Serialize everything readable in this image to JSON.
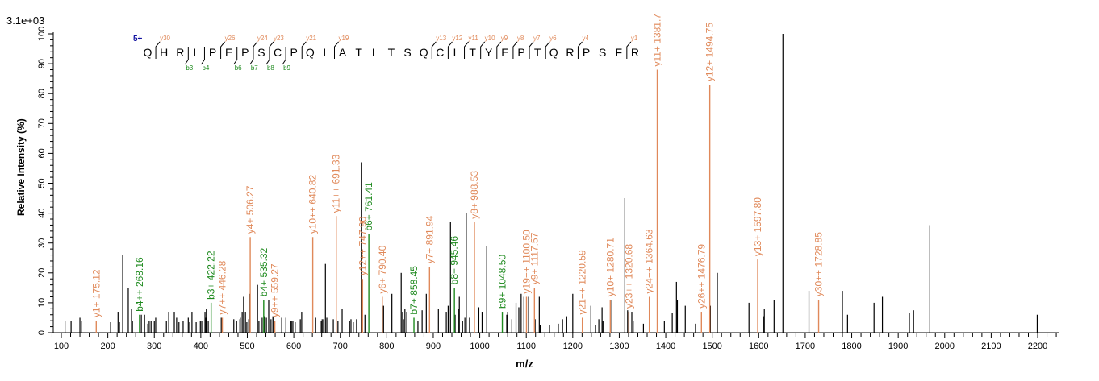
{
  "chart_data": {
    "type": "bar",
    "subtype": "mass-spectrum-stick",
    "scale_label": "3.1e+03",
    "xlabel": "m/z",
    "ylabel": "Relative   Intensity (%)",
    "xlim": [
      100,
      2250
    ],
    "ylim": [
      0,
      100
    ],
    "x_ticks": [
      100,
      200,
      300,
      400,
      500,
      600,
      700,
      800,
      900,
      1000,
      1100,
      1200,
      1300,
      1400,
      1500,
      1600,
      1700,
      1800,
      1900,
      2000,
      2100,
      2200
    ],
    "y_ticks": [
      0,
      10,
      20,
      30,
      40,
      50,
      60,
      70,
      80,
      90,
      100
    ],
    "grid": false,
    "colors": {
      "unassigned": "#000000",
      "y_ion": "#E0895A",
      "b_ion": "#1E8A1E",
      "charge": "#1010A0"
    },
    "sequence": {
      "charge": "5+",
      "residues": [
        "Q",
        "H",
        "R",
        "L",
        "P",
        "E",
        "P",
        "S",
        "C",
        "P",
        "Q",
        "L",
        "A",
        "T",
        "L",
        "T",
        "S",
        "Q",
        "C",
        "L",
        "T",
        "Y",
        "E",
        "P",
        "T",
        "Q",
        "R",
        "P",
        "S",
        "F",
        "R"
      ],
      "y_markers": [
        {
          "before": 1,
          "label": "y30"
        },
        {
          "before": 5,
          "label": "y26"
        },
        {
          "before": 7,
          "label": "y24"
        },
        {
          "before": 8,
          "label": "y23"
        },
        {
          "before": 10,
          "label": "y21"
        },
        {
          "before": 12,
          "label": "y19"
        },
        {
          "before": 18,
          "label": "y13"
        },
        {
          "before": 19,
          "label": "y12"
        },
        {
          "before": 20,
          "label": "y11"
        },
        {
          "before": 21,
          "label": "y10"
        },
        {
          "before": 22,
          "label": "y9"
        },
        {
          "before": 23,
          "label": "y8"
        },
        {
          "before": 24,
          "label": "y7"
        },
        {
          "before": 25,
          "label": "y6"
        },
        {
          "before": 27,
          "label": "y4"
        },
        {
          "before": 30,
          "label": "y1"
        }
      ],
      "b_markers": [
        {
          "before": 3,
          "label": "b3"
        },
        {
          "before": 4,
          "label": "b4"
        },
        {
          "before": 6,
          "label": "b6"
        },
        {
          "before": 7,
          "label": "b7"
        },
        {
          "before": 8,
          "label": "b8"
        },
        {
          "before": 9,
          "label": "b9"
        }
      ]
    },
    "labeled_peaks": [
      {
        "mz": 175.12,
        "intensity": 4,
        "ion": "y",
        "label": "y1+ 175.12"
      },
      {
        "mz": 268.16,
        "intensity": 6,
        "ion": "b",
        "label": "b4++ 268.16"
      },
      {
        "mz": 422.22,
        "intensity": 10,
        "ion": "b",
        "label": "b3+ 422.22"
      },
      {
        "mz": 446.28,
        "intensity": 5,
        "ion": "y",
        "label": "y7++ 446.28"
      },
      {
        "mz": 506.27,
        "intensity": 32,
        "ion": "y",
        "label": "y4+ 506.27"
      },
      {
        "mz": 535.32,
        "intensity": 11,
        "ion": "b",
        "label": "b4+ 535.32"
      },
      {
        "mz": 559.27,
        "intensity": 4,
        "ion": "y",
        "label": "y9++ 559.27"
      },
      {
        "mz": 640.82,
        "intensity": 32,
        "ion": "y",
        "label": "y10++ 640.82"
      },
      {
        "mz": 691.33,
        "intensity": 39,
        "ion": "y",
        "label": "y11++ 691.33"
      },
      {
        "mz": 747.9,
        "intensity": 18,
        "ion": "y",
        "label": "y12++ 747.90"
      },
      {
        "mz": 761.41,
        "intensity": 33,
        "ion": "b",
        "label": "b6+ 761.41"
      },
      {
        "mz": 790.4,
        "intensity": 12,
        "ion": "y",
        "label": "y6+ 790.40"
      },
      {
        "mz": 858.45,
        "intensity": 5,
        "ion": "b",
        "label": "b7+ 858.45"
      },
      {
        "mz": 891.94,
        "intensity": 22,
        "ion": "y",
        "label": "y7+ 891.94"
      },
      {
        "mz": 945.46,
        "intensity": 15,
        "ion": "b",
        "label": "b8+ 945.46"
      },
      {
        "mz": 988.53,
        "intensity": 37,
        "ion": "y",
        "label": "y8+ 988.53"
      },
      {
        "mz": 1048.5,
        "intensity": 7,
        "ion": "b",
        "label": "b9+ 1048.50"
      },
      {
        "mz": 1100.5,
        "intensity": 12,
        "ion": "y",
        "label": "y19++ 1100.50"
      },
      {
        "mz": 1117.57,
        "intensity": 15,
        "ion": "y",
        "label": "y9+ 1117.57"
      },
      {
        "mz": 1220.59,
        "intensity": 5,
        "ion": "y",
        "label": "y21++ 1220.59"
      },
      {
        "mz": 1280.71,
        "intensity": 11,
        "ion": "y",
        "label": "y10+ 1280.71"
      },
      {
        "mz": 1320.68,
        "intensity": 7,
        "ion": "y",
        "label": "y23++ 1320.68"
      },
      {
        "mz": 1364.63,
        "intensity": 12,
        "ion": "y",
        "label": "y24++ 1364.63"
      },
      {
        "mz": 1381.7,
        "intensity": 88,
        "ion": "y",
        "label": "y11+ 1381.7"
      },
      {
        "mz": 1476.79,
        "intensity": 7,
        "ion": "y",
        "label": "y26++ 1476.79"
      },
      {
        "mz": 1494.75,
        "intensity": 83,
        "ion": "y",
        "label": "y12+ 1494.75"
      },
      {
        "mz": 1597.8,
        "intensity": 24.5,
        "ion": "y",
        "label": "y13+ 1597.80"
      },
      {
        "mz": 1728.85,
        "intensity": 11,
        "ion": "y",
        "label": "y30++ 1728.85"
      }
    ],
    "unlabeled_peaks": [
      [
        108,
        4
      ],
      [
        121,
        4
      ],
      [
        140,
        5
      ],
      [
        143,
        4
      ],
      [
        206,
        3.5
      ],
      [
        222,
        7
      ],
      [
        225,
        3.5
      ],
      [
        232,
        26
      ],
      [
        244,
        15
      ],
      [
        251,
        8
      ],
      [
        253,
        4
      ],
      [
        272,
        6
      ],
      [
        279,
        6
      ],
      [
        286,
        3
      ],
      [
        289,
        4
      ],
      [
        293,
        4
      ],
      [
        300,
        4
      ],
      [
        303,
        5
      ],
      [
        326,
        4
      ],
      [
        331,
        7
      ],
      [
        343,
        7
      ],
      [
        348,
        5
      ],
      [
        353,
        3.5
      ],
      [
        362,
        4
      ],
      [
        373,
        5
      ],
      [
        376,
        3.5
      ],
      [
        381,
        7
      ],
      [
        390,
        3.5
      ],
      [
        399,
        4
      ],
      [
        402,
        4
      ],
      [
        409,
        7
      ],
      [
        411,
        5
      ],
      [
        412,
        8
      ],
      [
        416,
        4
      ],
      [
        444,
        5
      ],
      [
        471,
        4.5
      ],
      [
        477,
        4
      ],
      [
        484,
        4.5
      ],
      [
        485,
        5
      ],
      [
        489,
        7
      ],
      [
        492,
        12
      ],
      [
        496,
        7
      ],
      [
        499,
        3.5
      ],
      [
        503,
        4.5
      ],
      [
        504,
        13
      ],
      [
        522,
        16
      ],
      [
        525,
        4
      ],
      [
        532,
        5
      ],
      [
        537,
        5.5
      ],
      [
        541,
        5
      ],
      [
        546,
        11
      ],
      [
        551,
        4.5
      ],
      [
        555,
        5.5
      ],
      [
        557,
        5.5
      ],
      [
        574,
        5
      ],
      [
        583,
        5
      ],
      [
        593,
        4
      ],
      [
        595,
        4
      ],
      [
        598,
        4
      ],
      [
        603,
        3.5
      ],
      [
        614,
        4.5
      ],
      [
        617,
        7
      ],
      [
        647,
        5
      ],
      [
        659,
        4
      ],
      [
        661,
        4.5
      ],
      [
        664,
        4.5
      ],
      [
        668,
        23
      ],
      [
        671,
        5
      ],
      [
        685,
        4.5
      ],
      [
        695,
        4
      ],
      [
        704,
        8
      ],
      [
        720,
        4
      ],
      [
        723,
        4.5
      ],
      [
        728,
        3.5
      ],
      [
        735,
        4.5
      ],
      [
        746,
        57
      ],
      [
        753,
        6
      ],
      [
        793,
        9
      ],
      [
        811,
        13
      ],
      [
        831,
        20
      ],
      [
        834,
        7
      ],
      [
        836,
        4.5
      ],
      [
        839,
        8
      ],
      [
        843,
        7
      ],
      [
        867,
        4
      ],
      [
        876,
        7.5
      ],
      [
        885,
        13
      ],
      [
        911,
        8
      ],
      [
        928,
        7
      ],
      [
        932,
        9
      ],
      [
        937,
        37
      ],
      [
        947,
        6
      ],
      [
        954,
        8
      ],
      [
        956,
        12
      ],
      [
        963,
        4
      ],
      [
        968,
        5
      ],
      [
        971,
        40
      ],
      [
        978,
        5
      ],
      [
        998,
        8.5
      ],
      [
        1005,
        7
      ],
      [
        1015,
        29
      ],
      [
        1058,
        6
      ],
      [
        1060,
        7
      ],
      [
        1069,
        4.5
      ],
      [
        1078,
        10
      ],
      [
        1084,
        8.5
      ],
      [
        1089,
        13
      ],
      [
        1095,
        12
      ],
      [
        1105,
        12
      ],
      [
        1119,
        4.5
      ],
      [
        1128,
        12
      ],
      [
        1130,
        2.5
      ],
      [
        1150,
        2.5
      ],
      [
        1169,
        3
      ],
      [
        1178,
        4.5
      ],
      [
        1187,
        5.5
      ],
      [
        1200,
        13
      ],
      [
        1239,
        9
      ],
      [
        1249,
        2.5
      ],
      [
        1256,
        4.5
      ],
      [
        1263,
        8.5
      ],
      [
        1265,
        4
      ],
      [
        1284,
        11
      ],
      [
        1312,
        45
      ],
      [
        1318,
        7.5
      ],
      [
        1327,
        7
      ],
      [
        1330,
        4
      ],
      [
        1352,
        3
      ],
      [
        1383,
        5.5
      ],
      [
        1397,
        4
      ],
      [
        1414,
        6.5
      ],
      [
        1423,
        17
      ],
      [
        1425,
        11
      ],
      [
        1442,
        9
      ],
      [
        1464,
        3
      ],
      [
        1496,
        9
      ],
      [
        1511,
        20
      ],
      [
        1579,
        10
      ],
      [
        1610,
        5.5
      ],
      [
        1612,
        8
      ],
      [
        1633,
        11
      ],
      [
        1652,
        100
      ],
      [
        1708,
        14
      ],
      [
        1780,
        14
      ],
      [
        1791,
        6
      ],
      [
        1848,
        10
      ],
      [
        1866,
        12
      ],
      [
        1924,
        6.5
      ],
      [
        1933,
        7.5
      ],
      [
        1968,
        36
      ],
      [
        2199,
        6
      ]
    ]
  }
}
